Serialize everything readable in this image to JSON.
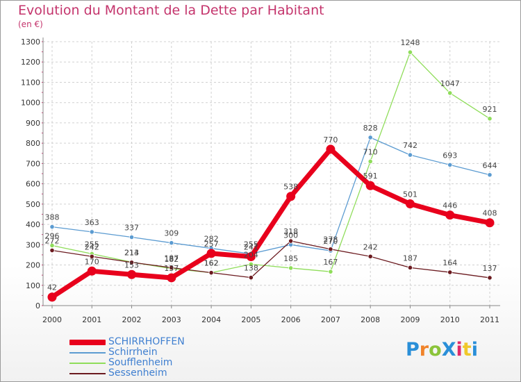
{
  "title": "Evolution du Montant de la Dette par Habitant",
  "unit": "(en €)",
  "logo": {
    "text": "ProXiti",
    "colors": [
      "#2a8fd8",
      "#f0832a",
      "#8bc43a",
      "#2a8fd8",
      "#e02a6a",
      "#f0c82a",
      "#2a8fd8"
    ]
  },
  "chart_data": {
    "type": "line",
    "x": [
      "2000",
      "2001",
      "2002",
      "2003",
      "2004",
      "2005",
      "2006",
      "2007",
      "2008",
      "2009",
      "2010",
      "2011"
    ],
    "ylim": [
      0,
      1300
    ],
    "yticks": [
      "0",
      "100",
      "200",
      "300",
      "400",
      "500",
      "600",
      "700",
      "800",
      "900",
      "1000",
      "1100",
      "1200",
      "1300"
    ],
    "grid": true,
    "legend_position": "bottom-left",
    "series": [
      {
        "name": "SCHIRRHOFFEN",
        "color": "#e8001c",
        "values": [
          42,
          170,
          153,
          137,
          257,
          241,
          538,
          770,
          591,
          501,
          446,
          408
        ]
      },
      {
        "name": "Schirrhein",
        "color": "#5b9bd1",
        "values": [
          388,
          363,
          337,
          309,
          282,
          255,
          300,
          270,
          828,
          742,
          693,
          644
        ]
      },
      {
        "name": "Soufflenheim",
        "color": "#8fdd5a",
        "values": [
          296,
          255,
          214,
          182,
          162,
          204,
          185,
          167,
          710,
          1248,
          1047,
          921
        ]
      },
      {
        "name": "Sessenheim",
        "color": "#6b1a1f",
        "values": [
          272,
          242,
          213,
          187,
          162,
          138,
          318,
          278,
          242,
          187,
          164,
          137
        ]
      }
    ]
  }
}
